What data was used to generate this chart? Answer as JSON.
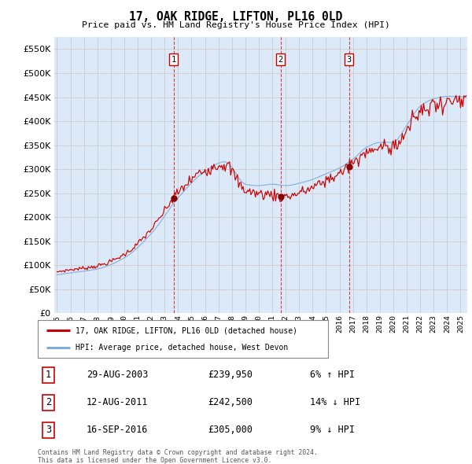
{
  "title": "17, OAK RIDGE, LIFTON, PL16 0LD",
  "subtitle": "Price paid vs. HM Land Registry's House Price Index (HPI)",
  "legend_line1": "17, OAK RIDGE, LIFTON, PL16 0LD (detached house)",
  "legend_line2": "HPI: Average price, detached house, West Devon",
  "transactions": [
    {
      "num": 1,
      "date": "29-AUG-2003",
      "price": 239950,
      "price_str": "£239,950",
      "pct": "6%",
      "dir": "↑"
    },
    {
      "num": 2,
      "date": "12-AUG-2011",
      "price": 242500,
      "price_str": "£242,500",
      "pct": "14%",
      "dir": "↓"
    },
    {
      "num": 3,
      "date": "16-SEP-2016",
      "price": 305000,
      "price_str": "£305,000",
      "pct": "9%",
      "dir": "↓"
    }
  ],
  "transaction_years": [
    2003.667,
    2011.617,
    2016.708
  ],
  "transaction_prices": [
    239950,
    242500,
    305000
  ],
  "footnote_line1": "Contains HM Land Registry data © Crown copyright and database right 2024.",
  "footnote_line2": "This data is licensed under the Open Government Licence v3.0.",
  "ylim": [
    0,
    575000
  ],
  "yticks": [
    0,
    50000,
    100000,
    150000,
    200000,
    250000,
    300000,
    350000,
    400000,
    450000,
    500000,
    550000
  ],
  "start_year": 1995.0,
  "end_year": 2025.5,
  "bg_color": "#dce9f8",
  "grid_color": "#c8d8e8",
  "red_line_color": "#cc0000",
  "blue_line_color": "#7aacdc",
  "marker_color": "#880000",
  "vline_color": "#dd0000",
  "box_edge_color": "#cc0000",
  "white": "#ffffff"
}
